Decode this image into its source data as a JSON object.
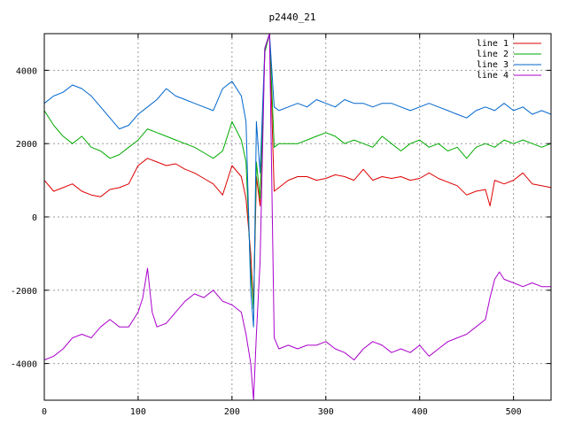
{
  "chart_data": {
    "type": "line",
    "title": "p2440_21",
    "xlabel": "",
    "ylabel": "",
    "xlim": [
      0,
      540
    ],
    "ylim": [
      -5000,
      5000
    ],
    "x_ticks": [
      0,
      100,
      200,
      300,
      400,
      500
    ],
    "y_ticks": [
      -4000,
      -2000,
      0,
      2000,
      4000
    ],
    "grid": true,
    "legend_position": "top-right",
    "series": [
      {
        "name": "line 1",
        "color": "#dd0000",
        "x": [
          0,
          10,
          20,
          30,
          40,
          50,
          60,
          70,
          80,
          90,
          100,
          110,
          120,
          130,
          140,
          150,
          160,
          170,
          180,
          190,
          200,
          210,
          215,
          220,
          223,
          226,
          230,
          235,
          240,
          245,
          250,
          260,
          270,
          280,
          290,
          300,
          310,
          320,
          330,
          340,
          350,
          360,
          370,
          380,
          390,
          400,
          410,
          420,
          430,
          440,
          450,
          460,
          470,
          475,
          480,
          490,
          500,
          510,
          520,
          530,
          540
        ],
        "y": [
          1000,
          700,
          800,
          900,
          700,
          600,
          550,
          750,
          800,
          900,
          1400,
          1600,
          1500,
          1400,
          1450,
          1300,
          1200,
          1050,
          900,
          600,
          1400,
          1100,
          500,
          -1000,
          -2500,
          1100,
          300,
          4500,
          5000,
          700,
          800,
          1000,
          1100,
          1100,
          1000,
          1050,
          1150,
          1100,
          1000,
          1300,
          1000,
          1100,
          1050,
          1100,
          1000,
          1050,
          1200,
          1050,
          950,
          850,
          600,
          700,
          750,
          300,
          1000,
          900,
          1000,
          1200,
          900,
          850,
          800
        ]
      },
      {
        "name": "line 2",
        "color": "#00aa00",
        "x": [
          0,
          10,
          20,
          30,
          40,
          50,
          60,
          70,
          80,
          90,
          100,
          110,
          120,
          130,
          140,
          150,
          160,
          170,
          180,
          190,
          200,
          210,
          215,
          220,
          223,
          226,
          230,
          235,
          240,
          245,
          250,
          260,
          270,
          280,
          290,
          300,
          310,
          320,
          330,
          340,
          350,
          360,
          370,
          380,
          390,
          400,
          410,
          420,
          430,
          440,
          450,
          460,
          470,
          480,
          490,
          500,
          510,
          520,
          530,
          540
        ],
        "y": [
          2900,
          2500,
          2200,
          2000,
          2200,
          1900,
          1800,
          1600,
          1700,
          1900,
          2100,
          2400,
          2300,
          2200,
          2100,
          2000,
          1900,
          1750,
          1600,
          1800,
          2600,
          2100,
          1500,
          -1500,
          -2500,
          1500,
          500,
          4500,
          5000,
          1900,
          2000,
          2000,
          2000,
          2100,
          2200,
          2300,
          2200,
          2000,
          2100,
          2000,
          1900,
          2200,
          2000,
          1800,
          2000,
          2100,
          1900,
          2000,
          1800,
          1900,
          1600,
          1900,
          2000,
          1900,
          2100,
          2000,
          2100,
          2000,
          1900,
          2000
        ]
      },
      {
        "name": "line 3",
        "color": "#0066cc",
        "x": [
          0,
          10,
          20,
          30,
          40,
          50,
          60,
          70,
          80,
          90,
          100,
          110,
          120,
          130,
          140,
          150,
          160,
          170,
          180,
          190,
          200,
          210,
          215,
          220,
          223,
          226,
          230,
          235,
          240,
          245,
          250,
          260,
          270,
          280,
          290,
          300,
          310,
          320,
          330,
          340,
          350,
          360,
          370,
          380,
          390,
          400,
          410,
          420,
          430,
          440,
          450,
          460,
          470,
          480,
          490,
          500,
          510,
          520,
          530,
          540
        ],
        "y": [
          3100,
          3300,
          3400,
          3600,
          3500,
          3300,
          3000,
          2700,
          2400,
          2500,
          2800,
          3000,
          3200,
          3500,
          3300,
          3200,
          3100,
          3000,
          2900,
          3500,
          3700,
          3300,
          2600,
          -2000,
          -3000,
          2600,
          1200,
          4600,
          5000,
          3000,
          2900,
          3000,
          3100,
          3000,
          3200,
          3100,
          3000,
          3200,
          3100,
          3100,
          3000,
          3100,
          3100,
          3000,
          2900,
          3000,
          3100,
          3000,
          2900,
          2800,
          2700,
          2900,
          3000,
          2900,
          3100,
          2900,
          3000,
          2800,
          2900,
          2800
        ]
      },
      {
        "name": "line 4",
        "color": "#aa00cc",
        "x": [
          0,
          10,
          20,
          30,
          40,
          50,
          60,
          70,
          80,
          90,
          100,
          105,
          110,
          115,
          120,
          130,
          140,
          150,
          160,
          170,
          180,
          190,
          200,
          210,
          215,
          220,
          223,
          226,
          230,
          235,
          240,
          245,
          250,
          260,
          270,
          280,
          290,
          300,
          310,
          320,
          330,
          340,
          350,
          360,
          370,
          380,
          390,
          400,
          410,
          420,
          430,
          440,
          450,
          460,
          470,
          475,
          480,
          485,
          490,
          500,
          510,
          520,
          530,
          540
        ],
        "y": [
          -3900,
          -3800,
          -3600,
          -3300,
          -3200,
          -3300,
          -3000,
          -2800,
          -3000,
          -3000,
          -2600,
          -2200,
          -1400,
          -2600,
          -3000,
          -2900,
          -2600,
          -2300,
          -2100,
          -2200,
          -2000,
          -2300,
          -2400,
          -2600,
          -3200,
          -4000,
          -5000,
          -3200,
          -1200,
          4600,
          5000,
          -3300,
          -3600,
          -3500,
          -3600,
          -3500,
          -3500,
          -3400,
          -3600,
          -3700,
          -3900,
          -3600,
          -3400,
          -3500,
          -3700,
          -3600,
          -3700,
          -3500,
          -3800,
          -3600,
          -3400,
          -3300,
          -3200,
          -3000,
          -2800,
          -2200,
          -1700,
          -1500,
          -1700,
          -1800,
          -1900,
          -1800,
          -1900,
          -1900
        ]
      }
    ]
  }
}
